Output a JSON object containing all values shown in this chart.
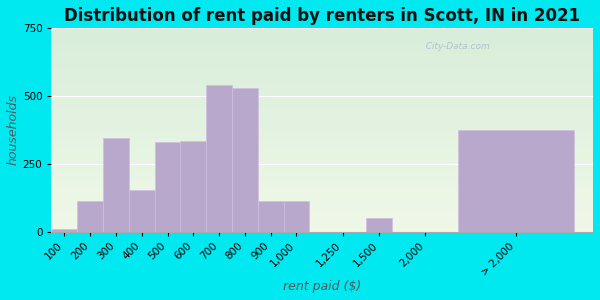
{
  "title": "Distribution of rent paid by renters in Scott, IN in 2021",
  "xlabel": "rent paid ($)",
  "ylabel": "households",
  "bar_labels": [
    "100",
    "200",
    "300",
    "400",
    "500",
    "600",
    "700",
    "800",
    "900",
    "1,000",
    "1,250",
    "1,500",
    "2,000",
    "> 2,000"
  ],
  "bar_values": [
    10,
    115,
    345,
    155,
    330,
    335,
    540,
    530,
    115,
    115,
    0,
    50,
    0,
    375
  ],
  "bar_color": "#b8a8cc",
  "bar_edge_color": "#d0c0e0",
  "ylim": [
    0,
    750
  ],
  "yticks": [
    0,
    250,
    500,
    750
  ],
  "background_outer": "#00e8f0",
  "title_fontsize": 12,
  "axis_label_fontsize": 9,
  "tick_fontsize": 7.5,
  "watermark": "  City-Data.com"
}
